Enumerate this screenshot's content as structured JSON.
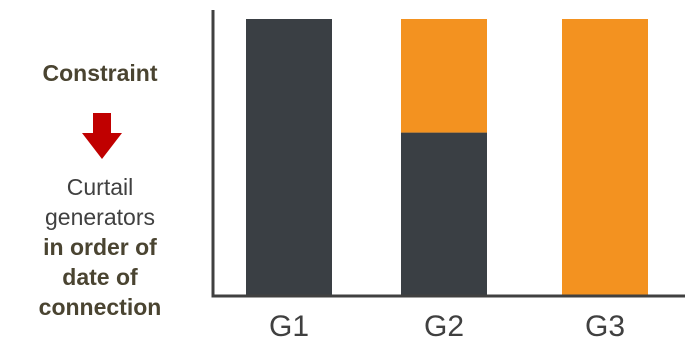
{
  "side_panel": {
    "constraint_label": "Constraint",
    "note_line1": "Curtail",
    "note_line2": "generators",
    "note_line3": "in order of",
    "note_line4": "date of",
    "note_line5": "connection"
  },
  "colors": {
    "dark": "#3a3f44",
    "orange": "#f39220",
    "arrow": "#c00000",
    "axis": "#404040"
  },
  "chart_data": {
    "type": "bar",
    "stacked": true,
    "categories": [
      "G1",
      "G2",
      "G3"
    ],
    "series": [
      {
        "values": [
          100,
          59,
          0
        ],
        "color": "#3a3f44"
      },
      {
        "values": [
          0,
          41,
          100
        ],
        "color": "#f39220"
      }
    ],
    "title": "",
    "xlabel": "",
    "ylabel": "",
    "ylim": [
      0,
      100
    ],
    "grid": false,
    "legend": "none",
    "y_tick_labels": false
  }
}
